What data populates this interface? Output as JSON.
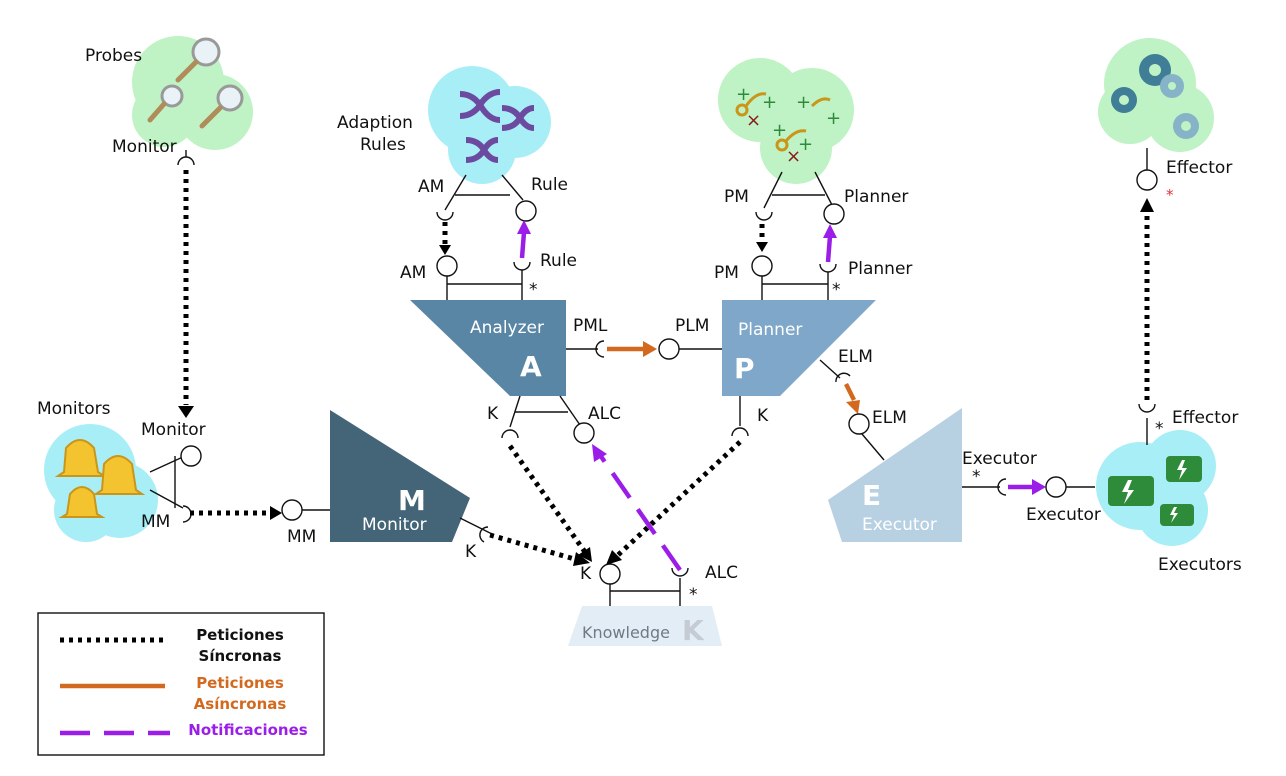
{
  "components": {
    "probes": {
      "title": "Probes",
      "port": "Monitor"
    },
    "monitors": {
      "title": "Monitors",
      "port_top": "Monitor",
      "port_bottom": "MM"
    },
    "adaption_rules": {
      "title_line1": "Adaption",
      "title_line2": "Rules",
      "port_left": "AM",
      "port_right": "Rule"
    },
    "planner_rules": {
      "port_left": "PM",
      "port_right": "Planner"
    },
    "effector": {
      "title": "Effector",
      "star": "*"
    },
    "executors": {
      "title": "Executors",
      "port_top": "Effector",
      "port_left": "Executor",
      "star": "*"
    },
    "analyzer": {
      "name": "Analyzer",
      "letter": "A",
      "port_am": "AM",
      "port_rule": "Rule",
      "port_pml": "PML",
      "port_k": "K",
      "port_alc": "ALC",
      "star": "*"
    },
    "planner": {
      "name": "Planner",
      "letter": "P",
      "port_pm": "PM",
      "port_planner": "Planner",
      "port_plm": "PLM",
      "port_elm": "ELM",
      "port_k": "K",
      "star": "*"
    },
    "monitor": {
      "name": "Monitor",
      "letter": "M",
      "port_mm": "MM",
      "port_k": "K"
    },
    "executor": {
      "name": "Executor",
      "letter": "E",
      "port_elm": "ELM",
      "port_executor": "Executor",
      "star": "*"
    },
    "knowledge": {
      "name": "Knowledge",
      "letter": "K",
      "port_k": "K",
      "port_alc": "ALC",
      "star": "*"
    }
  },
  "legend": {
    "sync_line1": "Peticiones",
    "sync_line2": "Síncronas",
    "async_line1": "Peticiones",
    "async_line2": "Asíncronas",
    "notif": "Notificaciones"
  },
  "colors": {
    "analyzer": "#5a86a6",
    "planner": "#7ea7c9",
    "monitor": "#446577",
    "executor": "#b7d0e2",
    "knowledge": "#e3edf5",
    "cyan_cloud": "#a8eef6",
    "green_cloud": "#bff2c4",
    "sync": "#000000",
    "async": "#d2691e",
    "notif": "#9b1ee8"
  }
}
